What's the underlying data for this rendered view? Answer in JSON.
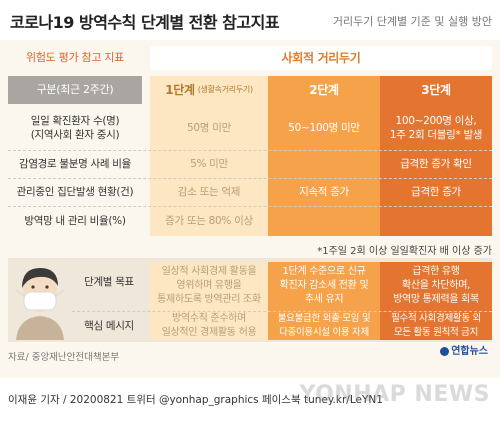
{
  "header": {
    "title": "코로나19 방역수칙 단계별 전환 참고지표",
    "subtitle": "거리두기 단계별 기준 및 실행 방안"
  },
  "top_headers": {
    "risk": "위험도 평가 참고 지표",
    "social": "사회적 거리두기"
  },
  "columns": {
    "label_header": "구분(최근 2주간)",
    "stage1_name": "1단계",
    "stage1_sub": "(생활속거리두기)",
    "stage2_name": "2단계",
    "stage3_name": "3단계"
  },
  "rows": [
    {
      "label": "일일 확진환자 수(명)\n(지역사회 환자 중시)",
      "c1": "50명 미만",
      "c2": "50~100명 미만",
      "c3": "100~200명 이상,\n1주 2회 더블링* 발생"
    },
    {
      "label": "감염경로 불분명 사례 비율",
      "c1": "5% 미만",
      "c2": "",
      "c3": "급격한 증가 확인"
    },
    {
      "label": "관리중인 집단발생 현황(건)",
      "c1": "감소 또는 억제",
      "c2": "지속적 증가",
      "c3": "급격한 증가"
    },
    {
      "label": "방역망 내 관리 비율(%)",
      "c1": "증가 또는 80% 이상",
      "c2": "",
      "c3": ""
    }
  ],
  "footnote": "*1주일 2회 이상 일일확진자 배 이상 증가",
  "lower_rows": [
    {
      "label": "단계별 목표",
      "c1": "일상적 사회경제 활동을\n영위하며 유행을\n통제하도록 방역관리 조화",
      "c2": "1단계 수준으로 신규\n확진자 감소세 전환 및\n추세 유지",
      "c3": "급격한 유행\n확산을 차단하며,\n방역망 통제력을 회복"
    },
    {
      "label": "핵심 메시지",
      "c1": "방역수칙 준수하며\n일상적인 경제활동 허용",
      "c2": "불요불급한 외출·모임 및\n다중이용시설 이용 자제",
      "c3": "필수적 사회경제활동 외\n모든 활동 원칙적 금지"
    }
  ],
  "source": "자료/ 중앙재난안전대책본부",
  "footer": {
    "credit": "이재윤 기자 / 20200821  트위터 @yonhap_graphics  페이스북 tuney.kr/LeYN1",
    "logo": "연합뉴스",
    "watermark": "YONHAP NEWS"
  },
  "colors": {
    "stage1": "#fde7c2",
    "stage2": "#f6a24a",
    "stage3": "#e47530",
    "label_bar": "#a9a6a1",
    "accent": "#e0642a"
  }
}
